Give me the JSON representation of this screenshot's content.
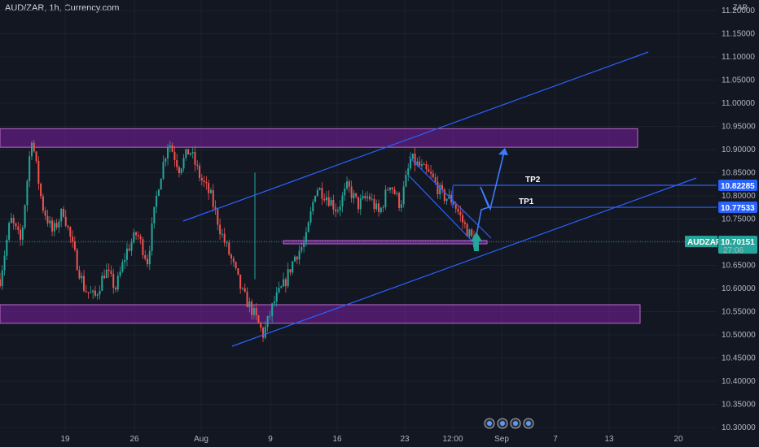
{
  "header": {
    "title": "AUD/ZAR, 1h, Currency.com",
    "currency": "ZAR"
  },
  "colors": {
    "background": "#131722",
    "up": "#26a69a",
    "down": "#ef5350",
    "zone_fill": "#7b1fa2",
    "zone_edge": "#ba68c8",
    "channel": "#2962ff",
    "tp_line": "#2962ff",
    "price_tag": "#26a69a"
  },
  "chart_data": {
    "type": "candlestick",
    "symbol": "AUDZAR",
    "timeframe": "1h",
    "y_axis": {
      "ticks": [
        "11.20000",
        "11.15000",
        "11.10000",
        "11.05000",
        "11.00000",
        "10.95000",
        "10.90000",
        "10.85000",
        "10.80000",
        "10.75000",
        "10.70000",
        "10.65000",
        "10.60000",
        "10.55000",
        "10.50000",
        "10.45000",
        "10.40000",
        "10.35000",
        "10.30000"
      ],
      "ylim": [
        10.295,
        11.21
      ]
    },
    "x_axis": {
      "ticks": [
        "19",
        "26",
        "Aug",
        "9",
        "16",
        "23",
        "12:00",
        "Sep",
        "7",
        "13",
        "20"
      ]
    },
    "price_path": [
      10.62,
      10.75,
      10.7,
      10.93,
      10.78,
      10.72,
      10.77,
      10.68,
      10.6,
      10.58,
      10.64,
      10.6,
      10.68,
      10.72,
      10.66,
      10.82,
      10.92,
      10.86,
      10.9,
      10.84,
      10.8,
      10.72,
      10.66,
      10.59,
      10.55,
      10.5,
      10.57,
      10.61,
      10.67,
      10.7,
      10.82,
      10.8,
      10.77,
      10.82,
      10.78,
      10.8,
      10.76,
      10.83,
      10.78,
      10.88,
      10.86,
      10.84,
      10.8,
      10.79,
      10.74,
      10.7
    ],
    "last_price": {
      "symbol": "AUDZAR",
      "value": "10.70151",
      "countdown": "27:06"
    },
    "zones": [
      {
        "name": "resistance",
        "low": 10.905,
        "high": 10.945
      },
      {
        "name": "support",
        "low": 10.525,
        "high": 10.565
      }
    ],
    "targets": [
      {
        "label": "TP2",
        "value": "10.82285"
      },
      {
        "label": "TP1",
        "value": "10.77533"
      }
    ]
  }
}
